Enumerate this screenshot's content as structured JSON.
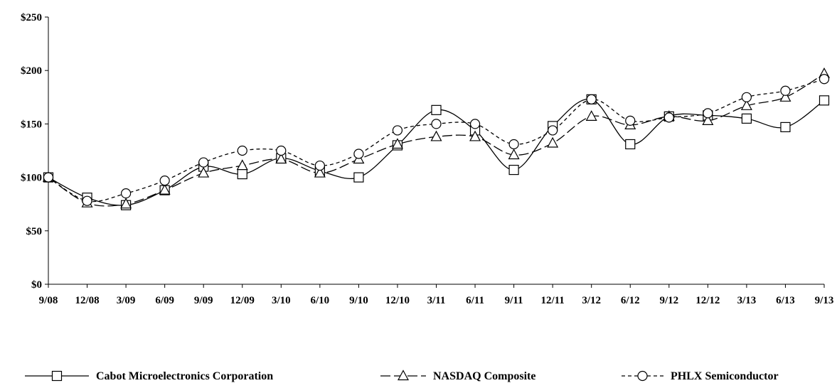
{
  "chart_data": {
    "type": "line",
    "title": "",
    "xlabel": "",
    "ylabel": "",
    "x": [
      "9/08",
      "12/08",
      "3/09",
      "6/09",
      "9/09",
      "12/09",
      "3/10",
      "6/10",
      "9/10",
      "12/10",
      "3/11",
      "6/11",
      "9/11",
      "12/11",
      "3/12",
      "6/12",
      "9/12",
      "12/12",
      "3/13",
      "6/13",
      "9/13"
    ],
    "ylim": [
      0,
      250
    ],
    "y_ticks": [
      0,
      50,
      100,
      150,
      200,
      250
    ],
    "y_tick_labels": [
      "$0",
      "$50",
      "$100",
      "$150",
      "$200",
      "$250"
    ],
    "grid": false,
    "legend_position": "bottom",
    "series": [
      {
        "name": "Cabot Microelectronics Corporation",
        "marker": "square",
        "line_style": "solid",
        "color": "#000000",
        "values": [
          100,
          81,
          74,
          88,
          110,
          103,
          118,
          106,
          100,
          130,
          163,
          144,
          107,
          148,
          173,
          131,
          157,
          158,
          155,
          147,
          172
        ]
      },
      {
        "name": "NASDAQ Composite",
        "marker": "triangle",
        "line_style": "longdash",
        "color": "#000000",
        "values": [
          100,
          76,
          75,
          88,
          104,
          111,
          117,
          104,
          117,
          131,
          138,
          138,
          121,
          132,
          157,
          149,
          157,
          153,
          167,
          175,
          197
        ]
      },
      {
        "name": "PHLX Semiconductor",
        "marker": "circle",
        "line_style": "shortdash",
        "color": "#000000",
        "values": [
          100,
          78,
          85,
          97,
          114,
          125,
          125,
          111,
          122,
          144,
          150,
          150,
          131,
          144,
          173,
          153,
          156,
          160,
          175,
          181,
          192
        ]
      }
    ]
  }
}
